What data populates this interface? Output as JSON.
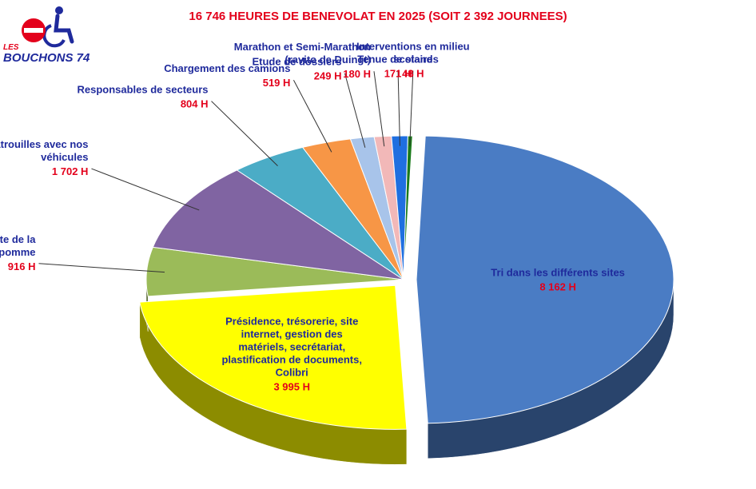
{
  "title": "16 746 HEURES DE BENEVOLAT EN 2025 (SOIT 2 392 JOURNEES)",
  "logo": {
    "line1": "LES",
    "line2": "BOUCHONS 74"
  },
  "chart_data": {
    "type": "pie",
    "title": "16 746 HEURES DE BENEVOLAT EN 2025 (SOIT 2 392 JOURNEES)",
    "unit": "H",
    "slices": [
      {
        "name": "TRI DANS LES DIFFÉRENTS SITES",
        "display_name": [
          "Tri dans les différents sites"
        ],
        "value": 8162,
        "value_label": "8 162 H",
        "color": "#4a7cc4",
        "exploded": true
      },
      {
        "name": "Présidence, trésorerie, site internet, gestion des matériels, secrétariat, plastification de documents, Colibri",
        "display_name": [
          "Présidence, trésorerie, site",
          "internet, gestion des",
          "matériels, secrétariat,",
          "plastification de documents,",
          "Colibri"
        ],
        "value": 3995,
        "value_label": "3 995 H",
        "color": "#ffff00",
        "exploded": true
      },
      {
        "name": "Fête de la pomme",
        "display_name": [
          "Fête de la",
          "pomme"
        ],
        "value": 916,
        "value_label": "916 H",
        "color": "#9bbb59"
      },
      {
        "name": "Patrouilles avec nos véhicules",
        "display_name": [
          "Patrouilles avec nos",
          "véhicules"
        ],
        "value": 1702,
        "value_label": "1 702 H",
        "color": "#8064a2"
      },
      {
        "name": "Responsables de secteurs",
        "display_name": [
          "Responsables de secteurs"
        ],
        "value": 804,
        "value_label": "804 H",
        "color": "#4bacc6"
      },
      {
        "name": "Chargement des camions",
        "display_name": [
          "Chargement des camions"
        ],
        "value": 519,
        "value_label": "519 H",
        "color": "#f79646"
      },
      {
        "name": "Etude de dossiers",
        "display_name": [
          "Etude de dossiers"
        ],
        "value": 249,
        "value_label": "249 H",
        "color": "#a8c4ea"
      },
      {
        "name": "Marathon et Semi-Marathon (ravito de Duingt)",
        "display_name": [
          "Marathon et Semi-Marathon",
          "(ravito de Duingt)"
        ],
        "value": 180,
        "value_label": "180 H",
        "color": "#f2b8b8"
      },
      {
        "name": "Tenue de stands",
        "display_name": [
          "Tenue de stands"
        ],
        "value": 171,
        "value_label": "171 H",
        "color": "#1f6fe0"
      },
      {
        "name": "Interventions en milieu scolaire",
        "display_name": [
          "Interventions en milieu",
          "scolaire"
        ],
        "value": 48,
        "value_label": "48 H",
        "color": "#1a7a1a"
      }
    ]
  }
}
